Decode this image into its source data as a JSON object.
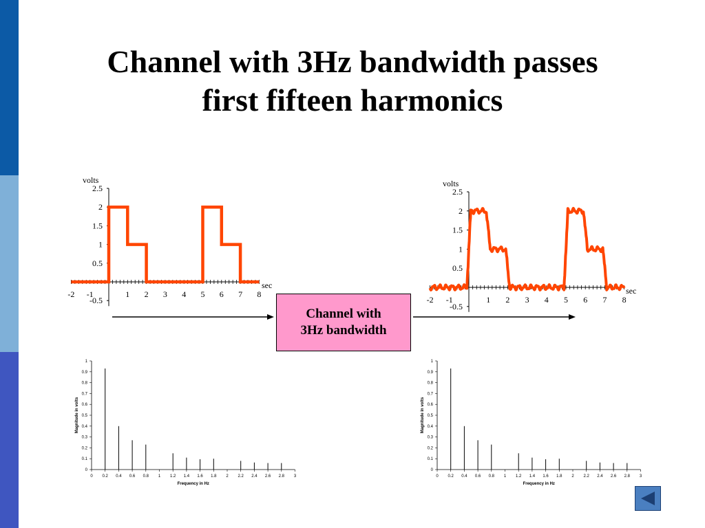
{
  "slide": {
    "title_line1": "Channel with 3Hz bandwidth passes",
    "title_line2": "first fifteen harmonics",
    "channel_box_line1": "Channel with",
    "channel_box_line2": "3Hz bandwidth"
  },
  "colors": {
    "signal": "#ff4500",
    "sidebar_top": "#0c5aa6",
    "sidebar_middle": "#7fb0d8",
    "sidebar_bottom": "#3f56c0",
    "channel_box_fill": "#ff99cc",
    "nav_button": "#4a7fc0"
  },
  "nav": {
    "back_icon": "triangle-left-icon"
  },
  "chart_data": [
    {
      "type": "line",
      "ylabel": "volts",
      "xlabel": "sec",
      "x_ticks": [
        "-2",
        "-1",
        "1",
        "2",
        "3",
        "4",
        "5",
        "6",
        "7",
        "8"
      ],
      "y_ticks": [
        "2.5",
        "2",
        "1.5",
        "1",
        "0.5",
        "-0.5"
      ],
      "xlim": [
        -2,
        8
      ],
      "ylim": [
        -0.5,
        2.5
      ],
      "series": [
        {
          "x": [
            -2,
            0,
            0,
            1,
            1,
            2,
            2,
            5,
            5,
            6,
            6,
            7,
            7,
            8
          ],
          "y": [
            0,
            0,
            2,
            2,
            1,
            1,
            0,
            0,
            2,
            2,
            1,
            1,
            0,
            0
          ]
        }
      ]
    },
    {
      "type": "line",
      "ylabel": "volts",
      "xlabel": "sec",
      "x_ticks": [
        "-2",
        "-1",
        "1",
        "2",
        "3",
        "4",
        "5",
        "6",
        "7",
        "8"
      ],
      "y_ticks": [
        "2.5",
        "2",
        "1.5",
        "1",
        "0.5",
        "-0.5"
      ],
      "xlim": [
        -2,
        8
      ],
      "ylim": [
        -0.5,
        2.5
      ],
      "series": [
        {
          "x": [
            -2,
            0,
            0,
            1,
            1,
            2,
            2,
            5,
            5,
            6,
            6,
            7,
            7,
            8
          ],
          "y": [
            0,
            0,
            2,
            2,
            1,
            1,
            0,
            0,
            2,
            2,
            1,
            1,
            0,
            0
          ],
          "ripple": true
        }
      ]
    },
    {
      "type": "bar",
      "xlabel": "Frequency in Hz",
      "ylabel": "Magnitude in volts",
      "x_ticks": [
        "0",
        "0.2",
        "0.4",
        "0.6",
        "0.8",
        "1",
        "1.2",
        "1.4",
        "1.6",
        "1.8",
        "2",
        "2.2",
        "2.4",
        "2.6",
        "2.8",
        "3"
      ],
      "y_ticks": [
        "0",
        "0.1",
        "0.2",
        "0.3",
        "0.4",
        "0.5",
        "0.6",
        "0.7",
        "0.8",
        "0.9",
        "1"
      ],
      "xlim": [
        0,
        3
      ],
      "ylim": [
        0,
        1
      ],
      "x": [
        0.2,
        0.4,
        0.6,
        0.8,
        1.2,
        1.4,
        1.6,
        1.8,
        2.2,
        2.4,
        2.6,
        2.8
      ],
      "values": [
        0.93,
        0.4,
        0.27,
        0.23,
        0.15,
        0.11,
        0.095,
        0.1,
        0.08,
        0.065,
        0.06,
        0.06
      ]
    },
    {
      "type": "bar",
      "xlabel": "Frequency in Hz",
      "ylabel": "Magnitude in volts",
      "x_ticks": [
        "0",
        "0.2",
        "0.4",
        "0.6",
        "0.8",
        "1",
        "1.2",
        "1.4",
        "1.6",
        "1.8",
        "2",
        "2.2",
        "2.4",
        "2.6",
        "2.8",
        "3"
      ],
      "y_ticks": [
        "0",
        "0.1",
        "0.2",
        "0.3",
        "0.4",
        "0.5",
        "0.6",
        "0.7",
        "0.8",
        "0.9",
        "1"
      ],
      "xlim": [
        0,
        3
      ],
      "ylim": [
        0,
        1
      ],
      "x": [
        0.2,
        0.4,
        0.6,
        0.8,
        1.2,
        1.4,
        1.6,
        1.8,
        2.2,
        2.4,
        2.6,
        2.8
      ],
      "values": [
        0.93,
        0.4,
        0.27,
        0.23,
        0.15,
        0.11,
        0.095,
        0.1,
        0.08,
        0.065,
        0.06,
        0.06
      ]
    }
  ]
}
